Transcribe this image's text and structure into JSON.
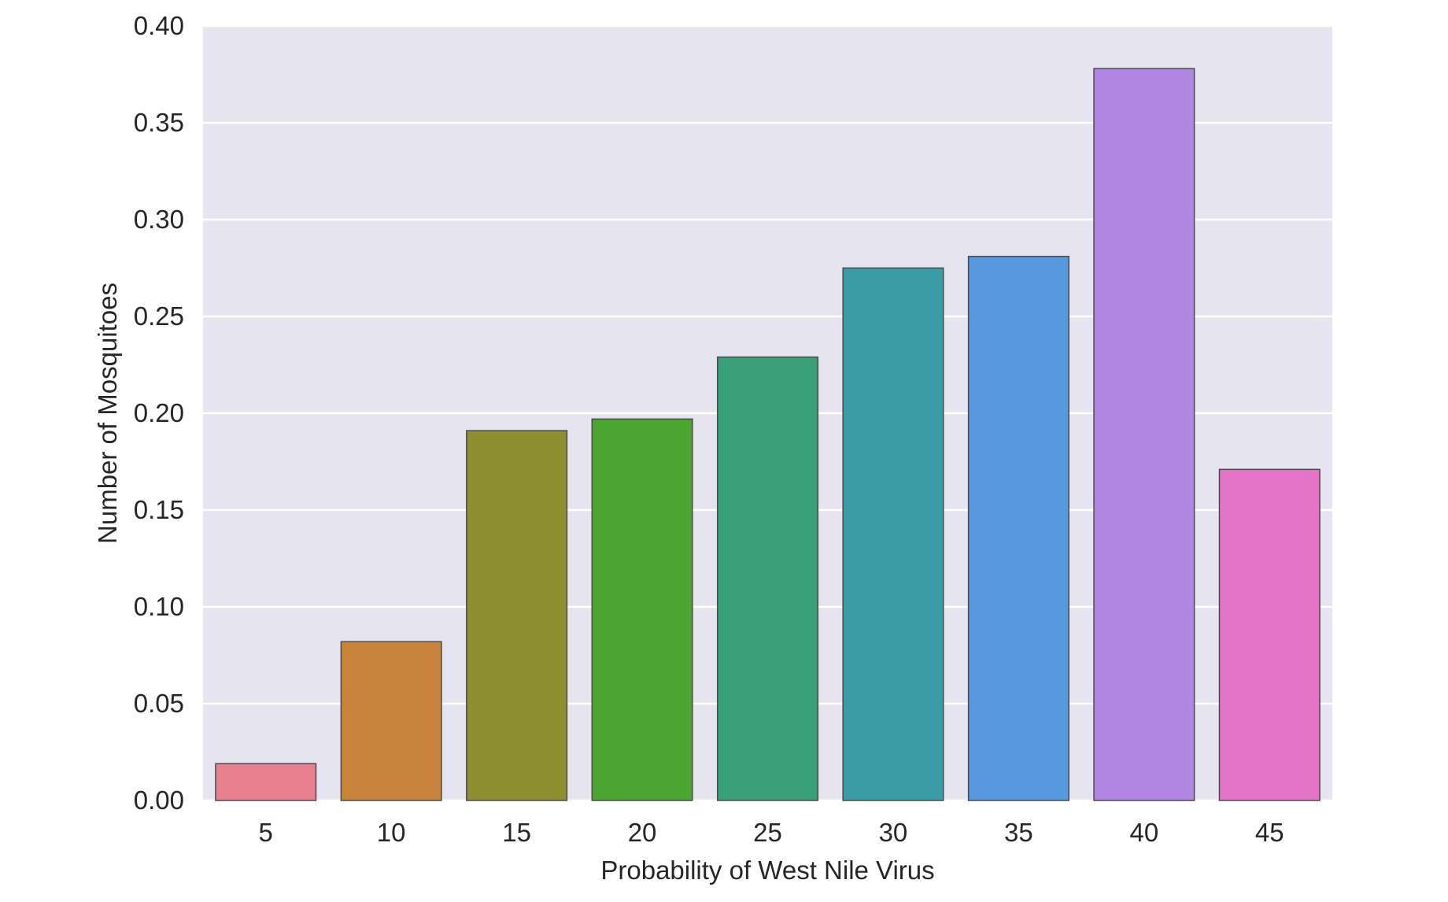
{
  "chart_data": {
    "type": "bar",
    "title": "",
    "xlabel": "Probability of West Nile Virus",
    "ylabel": "Number of Mosquitoes",
    "categories": [
      "5",
      "10",
      "15",
      "20",
      "25",
      "30",
      "35",
      "40",
      "45"
    ],
    "values": [
      0.019,
      0.082,
      0.191,
      0.197,
      0.229,
      0.275,
      0.281,
      0.378,
      0.171
    ],
    "bar_colors": [
      "#e8808d",
      "#c8843a",
      "#8e8f31",
      "#4ca532",
      "#3aa07a",
      "#3b9ca6",
      "#5699dc",
      "#b286e3",
      "#e474c6"
    ],
    "ylim": [
      0,
      0.4
    ],
    "yticks": [
      0.0,
      0.05,
      0.1,
      0.15,
      0.2,
      0.25,
      0.3,
      0.35,
      0.4
    ],
    "ytick_labels": [
      "0.00",
      "0.05",
      "0.10",
      "0.15",
      "0.20",
      "0.25",
      "0.30",
      "0.35",
      "0.40"
    ],
    "grid": true,
    "grid_axis": "y",
    "background_color": "#e5e4f0",
    "grid_color": "#ffffff",
    "legend": "none"
  }
}
